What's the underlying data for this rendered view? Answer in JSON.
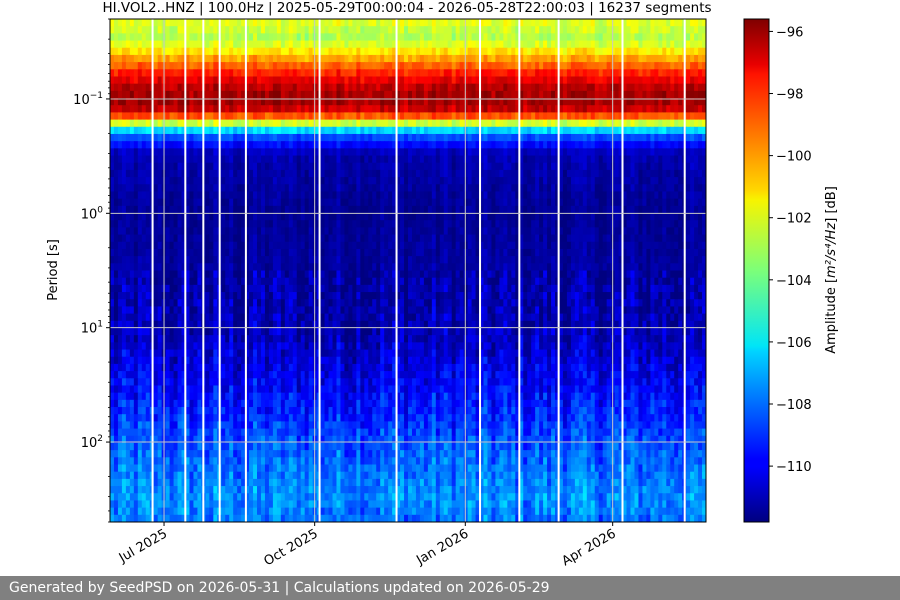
{
  "chart_data": {
    "type": "heatmap",
    "title": "HI.VOL2..HNZ | 100.0Hz | 2025-05-29T00:00:04 - 2026-05-28T22:00:03 | 16237 segments",
    "xlabel": "",
    "ylabel": "Period [s]",
    "y_scale": "log",
    "y_inverted": true,
    "ylim": [
      0.02,
      500
    ],
    "xlim": [
      "2025-05-29",
      "2026-05-28"
    ],
    "x_ticks": [
      {
        "date": "2025-07-01",
        "label": "Jul 2025"
      },
      {
        "date": "2025-10-01",
        "label": "Oct 2025"
      },
      {
        "date": "2026-01-01",
        "label": "Jan 2026"
      },
      {
        "date": "2026-04-01",
        "label": "Apr 2026"
      }
    ],
    "y_ticks": [
      {
        "value": 0.1,
        "base": "10",
        "exp": "−1"
      },
      {
        "value": 1,
        "base": "10",
        "exp": "0"
      },
      {
        "value": 10,
        "base": "10",
        "exp": "1"
      },
      {
        "value": 100,
        "base": "10",
        "exp": "2"
      }
    ],
    "grid": true,
    "colormap": "jet",
    "colorbar": {
      "label_pre": "Amplitude [",
      "label_math": "m²/s⁴/Hz",
      "label_post": "] [dB]",
      "range": [
        -111.8,
        -95.6
      ],
      "ticks": [
        -96,
        -98,
        -100,
        -102,
        -104,
        -106,
        -108,
        -110
      ]
    },
    "period_profile": [
      {
        "period": 0.02,
        "amplitude": -102
      },
      {
        "period": 0.03,
        "amplitude": -103
      },
      {
        "period": 0.04,
        "amplitude": -101
      },
      {
        "period": 0.06,
        "amplitude": -98
      },
      {
        "period": 0.08,
        "amplitude": -96.5
      },
      {
        "period": 0.1,
        "amplitude": -96
      },
      {
        "period": 0.13,
        "amplitude": -97
      },
      {
        "period": 0.16,
        "amplitude": -102
      },
      {
        "period": 0.2,
        "amplitude": -108
      },
      {
        "period": 0.3,
        "amplitude": -111
      },
      {
        "period": 1,
        "amplitude": -111.5
      },
      {
        "period": 10,
        "amplitude": -111
      },
      {
        "period": 30,
        "amplitude": -110
      },
      {
        "period": 100,
        "amplitude": -108.5
      },
      {
        "period": 300,
        "amplitude": -107.5
      },
      {
        "period": 500,
        "amplitude": -108
      }
    ],
    "gaps": [
      "2025-06-24",
      "2025-07-14",
      "2025-07-25",
      "2025-08-04",
      "2025-08-20",
      "2025-10-04",
      "2025-11-20",
      "2026-01-10",
      "2026-02-03",
      "2026-02-27",
      "2026-04-07",
      "2026-05-15"
    ]
  },
  "footer": {
    "text": "Generated by SeedPSD on 2026-05-31 | Calculations updated on 2026-05-29"
  }
}
